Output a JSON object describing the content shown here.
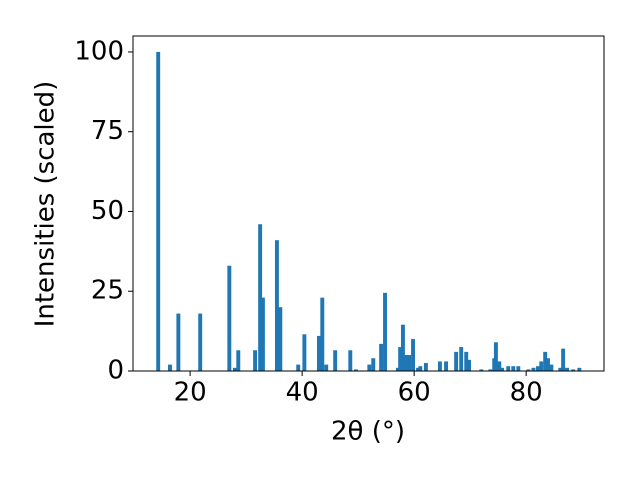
{
  "chart_data": {
    "type": "bar",
    "xlabel": "2θ (°)",
    "ylabel": "Intensities (scaled)",
    "color": "#1f77b4",
    "x": [
      14.3,
      16.4,
      17.9,
      21.8,
      27.0,
      28.0,
      28.6,
      31.6,
      32.5,
      33.0,
      35.5,
      36.1,
      39.3,
      40.4,
      43.0,
      43.6,
      44.3,
      45.9,
      48.6,
      49.6,
      52.0,
      52.7,
      54.1,
      54.8,
      57.1,
      57.5,
      58.0,
      58.6,
      59.1,
      59.8,
      60.7,
      61.1,
      62.1,
      64.6,
      65.7,
      67.5,
      68.4,
      69.3,
      69.8,
      72.0,
      73.6,
      74.3,
      74.6,
      75.2,
      75.7,
      76.8,
      77.7,
      78.6,
      80.4,
      81.3,
      82.1,
      82.7,
      83.4,
      83.9,
      84.5,
      86.1,
      86.6,
      87.3,
      88.4,
      89.5
    ],
    "values": [
      100,
      2,
      18,
      18,
      33,
      1,
      6.5,
      6.5,
      46,
      23,
      41,
      20,
      2,
      11.5,
      11,
      23,
      2,
      6.5,
      6.5,
      0.5,
      2,
      4,
      8.5,
      24.5,
      1,
      7.5,
      14.5,
      5,
      5,
      10,
      1,
      1.5,
      2.5,
      3,
      3,
      6,
      7.5,
      6,
      3.5,
      0.5,
      0.5,
      4,
      9,
      3,
      1,
      1.5,
      1.5,
      1.5,
      0.5,
      1,
      1.5,
      3,
      6,
      4,
      2,
      1,
      7,
      1,
      0.5,
      1
    ],
    "xlim": [
      9.8,
      93.9
    ],
    "ylim": [
      0,
      105
    ],
    "xticks": [
      20,
      40,
      60,
      80
    ],
    "yticks": [
      0,
      25,
      50,
      75,
      100
    ]
  }
}
